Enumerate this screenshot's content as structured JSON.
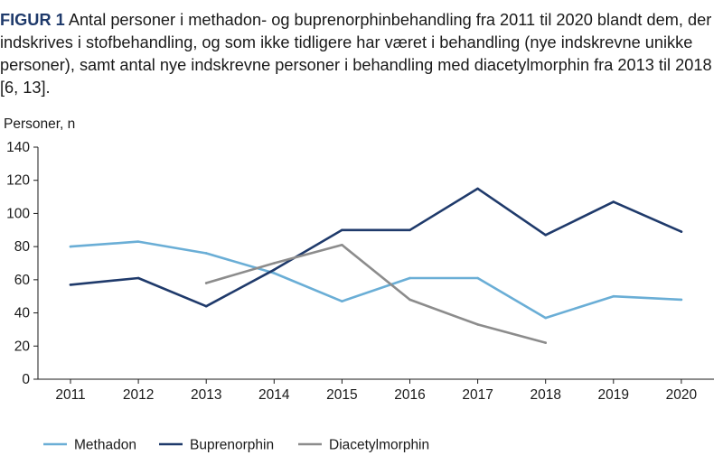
{
  "caption": {
    "label": "FIGUR 1",
    "text": "Antal personer i methadon- og buprenorphinbehandling fra 2011 til 2020 blandt dem, der indskrives i stofbehandling, og som ikke tidligere har været i behandling (nye indskrevne unikke personer), samt antal nye indskrevne personer i behandling med diacetylmorphin fra 2013 til 2018 [6, 13]."
  },
  "chart_data": {
    "type": "line",
    "title": "",
    "ylabel": "Personer, n",
    "xlabel": "",
    "x": [
      "2011",
      "2012",
      "2013",
      "2014",
      "2015",
      "2016",
      "2017",
      "2018",
      "2019",
      "2020"
    ],
    "ylim": [
      0,
      140
    ],
    "yticks": [
      0,
      20,
      40,
      60,
      80,
      100,
      120,
      140
    ],
    "legend_position": "bottom",
    "series": [
      {
        "name": "Methadon",
        "color": "#6aaed6",
        "values": [
          80,
          83,
          76,
          64,
          47,
          61,
          61,
          37,
          50,
          48
        ]
      },
      {
        "name": "Buprenorphin",
        "color": "#1f3a6b",
        "values": [
          57,
          61,
          44,
          66,
          90,
          90,
          115,
          87,
          107,
          89
        ]
      },
      {
        "name": "Diacetylmorphin",
        "color": "#8c8c8c",
        "values": [
          null,
          null,
          58,
          70,
          81,
          48,
          33,
          22,
          null,
          null
        ]
      }
    ]
  }
}
